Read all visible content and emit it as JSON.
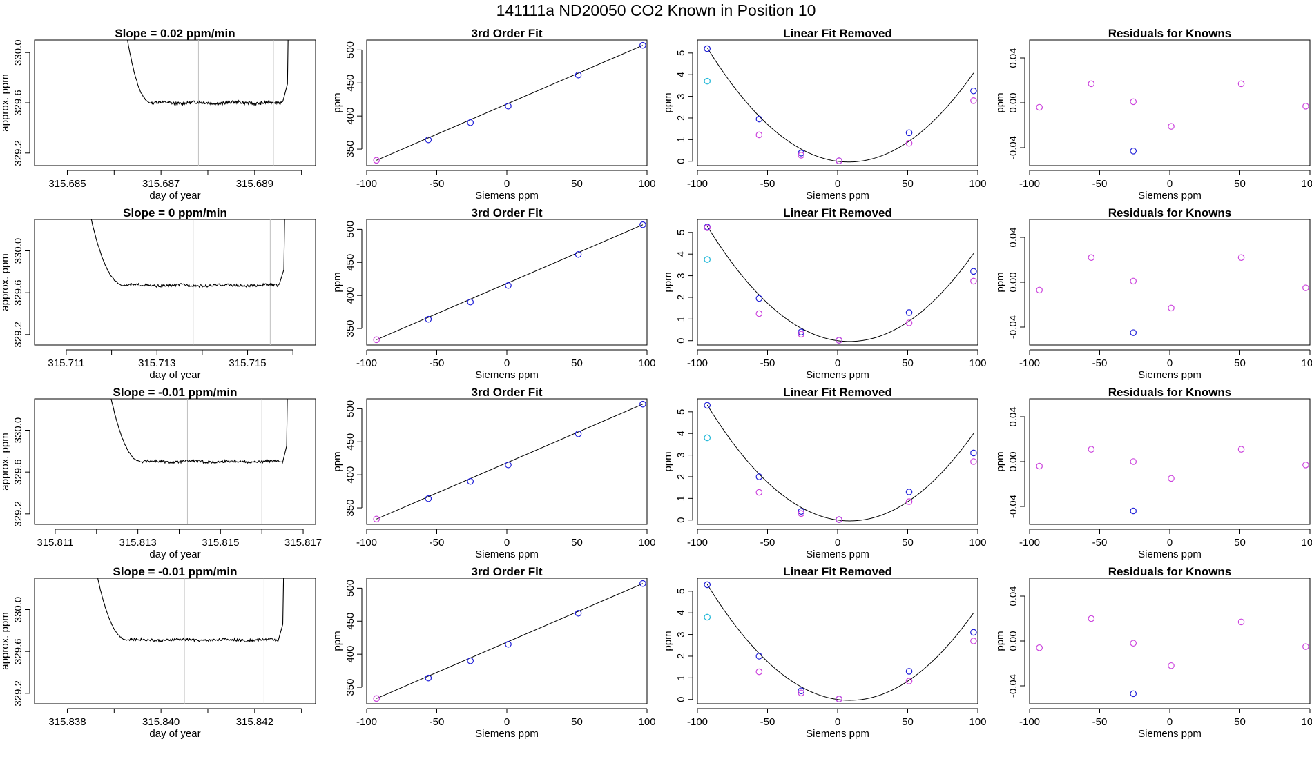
{
  "page": {
    "title": "141111a      ND20050    CO2 Known in Position  10"
  },
  "panel_titles": {
    "third_order": "3rd Order Fit",
    "linear_removed": "Linear Fit Removed",
    "residuals": "Residuals for Knowns"
  },
  "axis_labels": {
    "day_of_year": "day of year",
    "approx_ppm": "approx. ppm",
    "ppm": "ppm",
    "siemens_ppm": "Siemens ppm"
  },
  "colors": {
    "curve": "#000000",
    "marker_line": "#c0c0c0",
    "blue_point": "#2020d8",
    "magenta_point": "#cc44dd",
    "cyan_point": "#22b8d8",
    "red_mark": "#e04040"
  },
  "chart_data": [
    {
      "type": "line",
      "title": "Slope =  0.02  ppm/min",
      "xlabel": "day of year",
      "ylabel": "approx. ppm",
      "xlim": [
        315.6843,
        315.6903
      ],
      "ylim": [
        329.1,
        330.1
      ],
      "xticks": [
        315.685,
        315.686,
        315.687,
        315.688,
        315.689,
        315.69
      ],
      "xtick_labels": [
        "315.685",
        "",
        "315.687",
        "",
        "315.689",
        ""
      ],
      "yticks": [
        329.2,
        329.6,
        330.0
      ],
      "ytick_labels": [
        "329.2",
        "329.6",
        "330.0"
      ],
      "vlines": [
        315.6878,
        315.6894
      ],
      "trace": {
        "x_start": 315.6862,
        "plateau_start": 315.6868,
        "plateau_end": 315.6896,
        "rise_end": 315.6897,
        "start_y": 330.3,
        "plateau_y": 329.6,
        "end_y": 330.3
      }
    },
    {
      "type": "scatter",
      "title": "3rd Order Fit",
      "xlabel": "Siemens ppm",
      "ylabel": "ppm",
      "xlim": [
        -100,
        100
      ],
      "ylim": [
        325,
        515
      ],
      "xticks": [
        -100,
        -50,
        0,
        50,
        100
      ],
      "yticks": [
        350,
        400,
        450,
        500
      ],
      "fit_line": [
        [
          -93,
          333
        ],
        [
          97,
          507
        ]
      ],
      "series": [
        {
          "color": "blue",
          "x": [
            -56,
            -26,
            1,
            51,
            97
          ],
          "y": [
            364,
            390,
            415,
            462,
            507
          ]
        },
        {
          "color": "magenta",
          "x": [
            -93
          ],
          "y": [
            333
          ]
        }
      ]
    },
    {
      "type": "scatter",
      "title": "Linear Fit Removed",
      "xlabel": "Siemens ppm",
      "ylabel": "ppm",
      "xlim": [
        -100,
        100
      ],
      "ylim": [
        -0.2,
        5.6
      ],
      "xticks": [
        -100,
        -50,
        0,
        50,
        100
      ],
      "yticks": [
        0,
        1,
        2,
        3,
        4,
        5
      ],
      "fit_curve": {
        "a": 0.000518,
        "b": -0.0082,
        "c": 0.0,
        "x_range": [
          -93,
          97
        ]
      },
      "series": [
        {
          "color": "blue",
          "x": [
            -93,
            -56,
            -26,
            1,
            51,
            97
          ],
          "y": [
            5.2,
            1.95,
            0.38,
            0.02,
            1.32,
            3.25
          ]
        },
        {
          "color": "magenta",
          "x": [
            -56,
            -26,
            1,
            51,
            97
          ],
          "y": [
            1.22,
            0.28,
            0.02,
            0.83,
            2.8
          ]
        },
        {
          "color": "cyan",
          "x": [
            -93
          ],
          "y": [
            3.7
          ]
        }
      ]
    },
    {
      "type": "scatter",
      "title": "Residuals for Knowns",
      "xlabel": "Siemens ppm",
      "ylabel": "ppm",
      "xlim": [
        -100,
        100
      ],
      "ylim": [
        -0.056,
        0.056
      ],
      "xticks": [
        -100,
        -50,
        0,
        50,
        100
      ],
      "yticks": [
        -0.04,
        0.0,
        0.04
      ],
      "ytick_labels": [
        "-0.04",
        "0.00",
        "0.04"
      ],
      "series": [
        {
          "color": "magenta",
          "x": [
            -93,
            -56,
            -26,
            1,
            51,
            97
          ],
          "y": [
            -0.004,
            0.017,
            0.001,
            -0.021,
            0.017,
            -0.003
          ]
        },
        {
          "color": "blue",
          "x": [
            -26
          ],
          "y": [
            -0.043
          ]
        }
      ]
    },
    {
      "type": "line",
      "title": "Slope =  0  ppm/min",
      "xlabel": "day of year",
      "ylabel": "approx. ppm",
      "xlim": [
        315.7103,
        315.7165
      ],
      "ylim": [
        329.1,
        330.3
      ],
      "xticks": [
        315.711,
        315.712,
        315.713,
        315.714,
        315.715,
        315.716
      ],
      "xtick_labels": [
        "315.711",
        "",
        "315.713",
        "",
        "315.715",
        ""
      ],
      "yticks": [
        329.2,
        329.6,
        330.0
      ],
      "ytick_labels": [
        "329.2",
        "329.6",
        "330.0"
      ],
      "vlines": [
        315.7138,
        315.7155
      ],
      "trace": {
        "x_start": 315.7115,
        "plateau_start": 315.7123,
        "plateau_end": 315.7157,
        "rise_end": 315.7158,
        "start_y": 330.4,
        "plateau_y": 329.67,
        "end_y": 330.4
      }
    },
    {
      "type": "scatter",
      "title": "3rd Order Fit",
      "xlabel": "Siemens ppm",
      "ylabel": "ppm",
      "xlim": [
        -100,
        100
      ],
      "ylim": [
        325,
        515
      ],
      "xticks": [
        -100,
        -50,
        0,
        50,
        100
      ],
      "yticks": [
        350,
        400,
        450,
        500
      ],
      "fit_line": [
        [
          -93,
          333
        ],
        [
          97,
          507
        ]
      ],
      "series": [
        {
          "color": "blue",
          "x": [
            -56,
            -26,
            1,
            51,
            97
          ],
          "y": [
            364,
            390,
            415,
            462,
            507
          ]
        },
        {
          "color": "magenta",
          "x": [
            -93
          ],
          "y": [
            333
          ]
        }
      ]
    },
    {
      "type": "scatter",
      "title": "Linear Fit Removed",
      "xlabel": "Siemens ppm",
      "ylabel": "ppm",
      "xlim": [
        -100,
        100
      ],
      "ylim": [
        -0.2,
        5.6
      ],
      "xticks": [
        -100,
        -50,
        0,
        50,
        100
      ],
      "yticks": [
        0,
        1,
        2,
        3,
        4,
        5
      ],
      "fit_curve": {
        "a": 0.000518,
        "b": -0.0087,
        "c": 0.0,
        "x_range": [
          -93,
          97
        ]
      },
      "series": [
        {
          "color": "blue",
          "x": [
            -93,
            -56,
            -26,
            1,
            51,
            97
          ],
          "y": [
            5.25,
            1.95,
            0.4,
            0.02,
            1.3,
            3.2
          ]
        },
        {
          "color": "magenta",
          "x": [
            -93,
            -56,
            -26,
            1,
            51,
            97
          ],
          "y": [
            5.22,
            1.25,
            0.3,
            0.02,
            0.82,
            2.75
          ]
        },
        {
          "color": "cyan",
          "x": [
            -93
          ],
          "y": [
            3.75
          ]
        }
      ]
    },
    {
      "type": "scatter",
      "title": "Residuals for Knowns",
      "xlabel": "Siemens ppm",
      "ylabel": "ppm",
      "xlim": [
        -100,
        100
      ],
      "ylim": [
        -0.056,
        0.056
      ],
      "xticks": [
        -100,
        -50,
        0,
        50,
        100
      ],
      "yticks": [
        -0.04,
        0.0,
        0.04
      ],
      "ytick_labels": [
        "-0.04",
        "0.00",
        "0.04"
      ],
      "series": [
        {
          "color": "magenta",
          "x": [
            -93,
            -56,
            -26,
            1,
            51,
            97
          ],
          "y": [
            -0.007,
            0.022,
            0.001,
            -0.023,
            0.022,
            -0.005
          ]
        },
        {
          "color": "blue",
          "x": [
            -26
          ],
          "y": [
            -0.045
          ]
        }
      ]
    },
    {
      "type": "line",
      "title": "Slope =  -0.01  ppm/min",
      "xlabel": "day of year",
      "ylabel": "approx. ppm",
      "xlim": [
        315.8105,
        315.8173
      ],
      "ylim": [
        329.1,
        330.3
      ],
      "xticks": [
        315.811,
        315.812,
        315.813,
        315.814,
        315.815,
        315.816,
        315.817
      ],
      "xtick_labels": [
        "315.811",
        "",
        "315.813",
        "",
        "315.815",
        "",
        "315.817"
      ],
      "yticks": [
        329.2,
        329.6,
        330.0
      ],
      "ytick_labels": [
        "329.2",
        "329.6",
        "330.0"
      ],
      "vlines": [
        315.8142,
        315.816
      ],
      "trace": {
        "x_start": 315.8123,
        "plateau_start": 315.8131,
        "plateau_end": 315.8165,
        "rise_end": 315.8166,
        "start_y": 330.4,
        "plateau_y": 329.7,
        "end_y": 330.4
      }
    },
    {
      "type": "scatter",
      "title": "3rd Order Fit",
      "xlabel": "Siemens ppm",
      "ylabel": "ppm",
      "xlim": [
        -100,
        100
      ],
      "ylim": [
        325,
        515
      ],
      "xticks": [
        -100,
        -50,
        0,
        50,
        100
      ],
      "yticks": [
        350,
        400,
        450,
        500
      ],
      "fit_line": [
        [
          -93,
          333
        ],
        [
          97,
          507
        ]
      ],
      "series": [
        {
          "color": "blue",
          "x": [
            -56,
            -26,
            1,
            51,
            97
          ],
          "y": [
            364,
            390,
            415,
            462,
            507
          ]
        },
        {
          "color": "magenta",
          "x": [
            -93
          ],
          "y": [
            333
          ]
        }
      ]
    },
    {
      "type": "scatter",
      "title": "Linear Fit Removed",
      "xlabel": "Siemens ppm",
      "ylabel": "ppm",
      "xlim": [
        -100,
        100
      ],
      "ylim": [
        -0.2,
        5.6
      ],
      "xticks": [
        -100,
        -50,
        0,
        50,
        100
      ],
      "yticks": [
        0,
        1,
        2,
        3,
        4,
        5
      ],
      "fit_curve": {
        "a": 0.000518,
        "b": -0.009,
        "c": 0.0,
        "x_range": [
          -93,
          97
        ]
      },
      "series": [
        {
          "color": "blue",
          "x": [
            -93,
            -56,
            -26,
            1,
            51,
            97
          ],
          "y": [
            5.3,
            2.0,
            0.4,
            0.02,
            1.3,
            3.1
          ]
        },
        {
          "color": "magenta",
          "x": [
            -56,
            -26,
            1,
            51,
            97
          ],
          "y": [
            1.28,
            0.3,
            0.02,
            0.85,
            2.7
          ]
        },
        {
          "color": "cyan",
          "x": [
            -93
          ],
          "y": [
            3.8
          ]
        }
      ]
    },
    {
      "type": "scatter",
      "title": "Residuals for Knowns",
      "xlabel": "Siemens ppm",
      "ylabel": "ppm",
      "xlim": [
        -100,
        100
      ],
      "ylim": [
        -0.056,
        0.056
      ],
      "xticks": [
        -100,
        -50,
        0,
        50,
        100
      ],
      "yticks": [
        -0.04,
        0.0,
        0.04
      ],
      "ytick_labels": [
        "-0.04",
        "0.00",
        "0.04"
      ],
      "series": [
        {
          "color": "magenta",
          "x": [
            -93,
            -56,
            -26,
            1,
            51,
            97
          ],
          "y": [
            -0.004,
            0.011,
            0.0,
            -0.015,
            0.011,
            -0.003
          ]
        },
        {
          "color": "blue",
          "x": [
            -26
          ],
          "y": [
            -0.044
          ]
        }
      ]
    },
    {
      "type": "line",
      "title": "Slope =  -0.01  ppm/min",
      "xlabel": "day of year",
      "ylabel": "approx. ppm",
      "xlim": [
        315.8373,
        315.8433
      ],
      "ylim": [
        329.1,
        330.3
      ],
      "xticks": [
        315.838,
        315.839,
        315.84,
        315.841,
        315.842,
        315.843
      ],
      "xtick_labels": [
        "315.838",
        "",
        "315.840",
        "",
        "315.842",
        ""
      ],
      "yticks": [
        329.2,
        329.6,
        330.0
      ],
      "ytick_labels": [
        "329.2",
        "329.6",
        "330.0"
      ],
      "vlines": [
        315.8405,
        315.8422
      ],
      "trace": {
        "x_start": 315.8386,
        "plateau_start": 315.8393,
        "plateau_end": 315.8425,
        "rise_end": 315.8426,
        "start_y": 330.4,
        "plateau_y": 329.71,
        "end_y": 330.4
      }
    },
    {
      "type": "scatter",
      "title": "3rd Order Fit",
      "xlabel": "Siemens ppm",
      "ylabel": "ppm",
      "xlim": [
        -100,
        100
      ],
      "ylim": [
        325,
        515
      ],
      "xticks": [
        -100,
        -50,
        0,
        50,
        100
      ],
      "yticks": [
        350,
        400,
        450,
        500
      ],
      "fit_line": [
        [
          -93,
          333
        ],
        [
          97,
          507
        ]
      ],
      "series": [
        {
          "color": "blue",
          "x": [
            -56,
            -26,
            1,
            51,
            97
          ],
          "y": [
            364,
            390,
            415,
            462,
            507
          ]
        },
        {
          "color": "magenta",
          "x": [
            -93
          ],
          "y": [
            333
          ]
        }
      ]
    },
    {
      "type": "scatter",
      "title": "Linear Fit Removed",
      "xlabel": "Siemens ppm",
      "ylabel": "ppm",
      "xlim": [
        -100,
        100
      ],
      "ylim": [
        -0.2,
        5.6
      ],
      "xticks": [
        -100,
        -50,
        0,
        50,
        100
      ],
      "yticks": [
        0,
        1,
        2,
        3,
        4,
        5
      ],
      "fit_curve": {
        "a": 0.000518,
        "b": -0.009,
        "c": 0.0,
        "x_range": [
          -93,
          97
        ]
      },
      "series": [
        {
          "color": "blue",
          "x": [
            -93,
            -56,
            -26,
            1,
            51,
            97
          ],
          "y": [
            5.3,
            2.0,
            0.4,
            0.02,
            1.3,
            3.1
          ]
        },
        {
          "color": "magenta",
          "x": [
            -56,
            -26,
            1,
            51,
            97
          ],
          "y": [
            1.28,
            0.3,
            0.02,
            0.85,
            2.7
          ]
        },
        {
          "color": "cyan",
          "x": [
            -93
          ],
          "y": [
            3.8
          ]
        }
      ]
    },
    {
      "type": "scatter",
      "title": "Residuals for Knowns",
      "xlabel": "Siemens ppm",
      "ylabel": "ppm",
      "xlim": [
        -100,
        100
      ],
      "ylim": [
        -0.056,
        0.056
      ],
      "xticks": [
        -100,
        -50,
        0,
        50,
        100
      ],
      "yticks": [
        -0.04,
        0.0,
        0.04
      ],
      "ytick_labels": [
        "-0.04",
        "0.00",
        "0.04"
      ],
      "series": [
        {
          "color": "magenta",
          "x": [
            -93,
            -56,
            -26,
            1,
            51,
            97
          ],
          "y": [
            -0.006,
            0.02,
            -0.002,
            -0.022,
            0.017,
            -0.005
          ]
        },
        {
          "color": "blue",
          "x": [
            -26
          ],
          "y": [
            -0.047
          ]
        }
      ]
    }
  ]
}
